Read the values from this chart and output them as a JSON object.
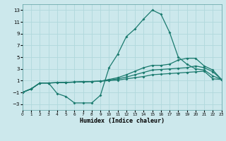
{
  "xlabel": "Humidex (Indice chaleur)",
  "xlim": [
    0,
    23
  ],
  "ylim": [
    -4,
    14
  ],
  "yticks": [
    -3,
    -1,
    1,
    3,
    5,
    7,
    9,
    11,
    13
  ],
  "xticks": [
    0,
    1,
    2,
    3,
    4,
    5,
    6,
    7,
    8,
    9,
    10,
    11,
    12,
    13,
    14,
    15,
    16,
    17,
    18,
    19,
    20,
    21,
    22,
    23
  ],
  "bg_color": "#cce8ec",
  "grid_color": "#b0d8dc",
  "line_color": "#1a7a6e",
  "line1_y": [
    -1,
    -0.4,
    0.6,
    0.6,
    -1.2,
    -1.7,
    -2.8,
    -2.8,
    -2.8,
    -1.5,
    3.2,
    5.5,
    8.5,
    9.8,
    11.5,
    13.0,
    12.3,
    9.2,
    5.0,
    3.8,
    3.0,
    2.8,
    1.8,
    1.2
  ],
  "line2_y": [
    -1,
    -0.4,
    0.6,
    0.6,
    0.65,
    0.7,
    0.75,
    0.8,
    0.85,
    0.9,
    1.0,
    1.1,
    1.3,
    1.5,
    1.7,
    2.0,
    2.1,
    2.2,
    2.3,
    2.4,
    2.5,
    2.6,
    1.3,
    1.2
  ],
  "line3_y": [
    -1,
    -0.4,
    0.6,
    0.6,
    0.65,
    0.7,
    0.75,
    0.8,
    0.85,
    0.9,
    1.1,
    1.3,
    1.6,
    2.0,
    2.4,
    2.8,
    2.9,
    3.0,
    3.1,
    3.2,
    3.5,
    3.2,
    2.5,
    1.2
  ],
  "line4_y": [
    -1,
    -0.4,
    0.6,
    0.6,
    0.65,
    0.7,
    0.75,
    0.8,
    0.85,
    0.9,
    1.2,
    1.5,
    2.0,
    2.6,
    3.2,
    3.6,
    3.6,
    3.8,
    4.5,
    4.8,
    4.8,
    3.5,
    2.8,
    1.2
  ]
}
